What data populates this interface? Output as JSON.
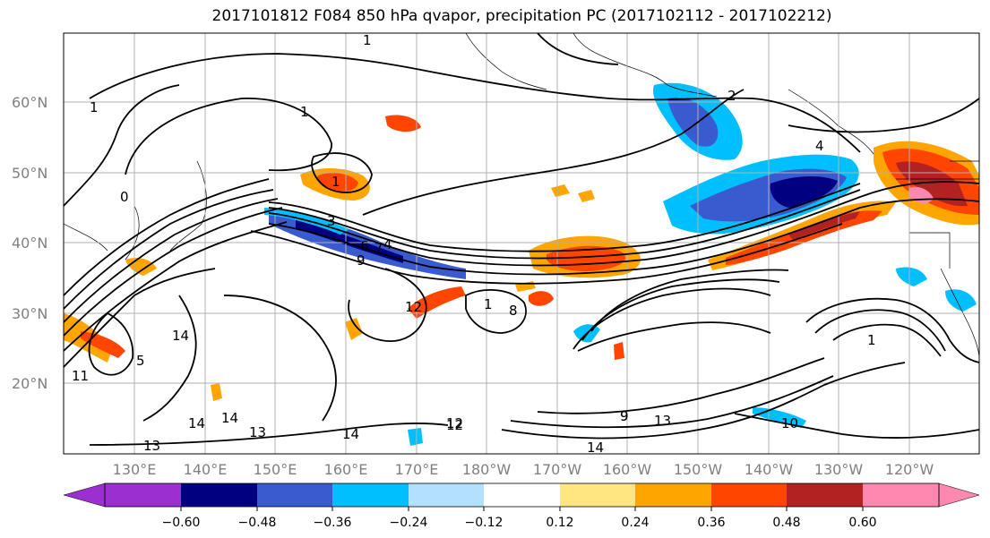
{
  "title": "2017101812 F084 850 hPa qvapor, precipitation PC (2017102112 - 2017102212)",
  "axes": {
    "lat_labels": [
      "60°N",
      "50°N",
      "40°N",
      "30°N",
      "20°N"
    ],
    "lon_labels": [
      "130°E",
      "140°E",
      "150°E",
      "160°E",
      "170°E",
      "180°W",
      "170°W",
      "160°W",
      "150°W",
      "140°W",
      "130°W",
      "120°W"
    ]
  },
  "colorbar": {
    "ticks": [
      "−0.60",
      "−0.48",
      "−0.36",
      "−0.24",
      "−0.12",
      "0.12",
      "0.24",
      "0.36",
      "0.48",
      "0.60"
    ],
    "colors": [
      "#9b30d0",
      "#000080",
      "#3a5bd0",
      "#00bfff",
      "#b3e0ff",
      "#ffffff",
      "#ffe680",
      "#ffa500",
      "#ff4500",
      "#b22222",
      "#ff88b0"
    ]
  },
  "contour_labels": [
    "1",
    "1",
    "0",
    "1",
    "2",
    "4",
    "4",
    "9",
    "1",
    "6",
    "7",
    "3",
    "12",
    "1",
    "8",
    "12",
    "14",
    "5",
    "11",
    "9",
    "14",
    "14",
    "13",
    "13",
    "14",
    "12",
    "9",
    "14",
    "13",
    "10",
    "1"
  ]
}
